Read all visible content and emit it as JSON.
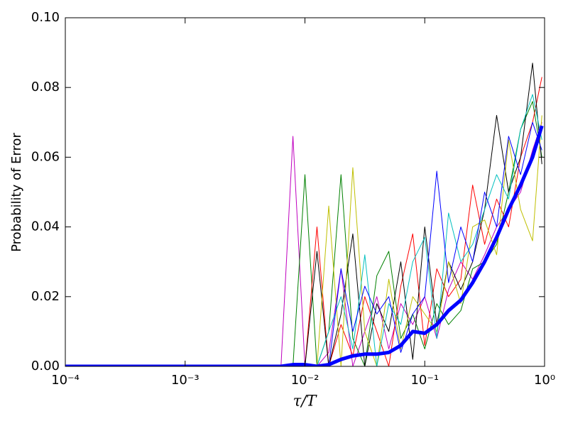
{
  "chart_data": {
    "type": "line",
    "xlabel": "τ/T",
    "ylabel": "Probability of Error",
    "xscale": "log",
    "xlim": [
      0.0001,
      1
    ],
    "ylim": [
      0,
      0.1
    ],
    "xticks": [
      {
        "value": 0.0001,
        "label": "10⁻⁴"
      },
      {
        "value": 0.001,
        "label": "10⁻³"
      },
      {
        "value": 0.01,
        "label": "10⁻²"
      },
      {
        "value": 0.1,
        "label": "10⁻¹"
      },
      {
        "value": 1,
        "label": "10⁰"
      }
    ],
    "yticks": [
      {
        "value": 0,
        "label": "0.00"
      },
      {
        "value": 0.02,
        "label": "0.02"
      },
      {
        "value": 0.04,
        "label": "0.04"
      },
      {
        "value": 0.06,
        "label": "0.06"
      },
      {
        "value": 0.08,
        "label": "0.08"
      },
      {
        "value": 0.1,
        "label": "0.10"
      }
    ],
    "grid": false,
    "x": [
      0.0001,
      0.000126,
      0.000158,
      0.0002,
      0.000251,
      0.000316,
      0.000398,
      0.000501,
      0.000631,
      0.000794,
      0.001,
      0.00126,
      0.00158,
      0.002,
      0.00251,
      0.00316,
      0.00398,
      0.00501,
      0.00631,
      0.00794,
      0.01,
      0.0126,
      0.0158,
      0.02,
      0.0251,
      0.0316,
      0.0398,
      0.0501,
      0.0631,
      0.0794,
      0.1,
      0.126,
      0.158,
      0.2,
      0.251,
      0.316,
      0.398,
      0.501,
      0.631,
      0.794,
      0.95
    ],
    "series": [
      {
        "color": "#bf00bf",
        "linewidth": 1,
        "values": [
          0,
          0,
          0,
          0,
          0,
          0,
          0,
          0,
          0,
          0,
          0,
          0,
          0,
          0,
          0,
          0,
          0,
          0,
          0,
          0.066,
          0,
          0,
          0.004,
          0.028,
          0,
          0.01,
          0.02,
          0.005,
          0.018,
          0.012,
          0.02,
          0.008,
          0.022,
          0.03,
          0.025,
          0.032,
          0.04,
          0.045,
          0.05,
          0.062,
          0.07
        ]
      },
      {
        "color": "#008000",
        "linewidth": 1,
        "values": [
          0,
          0,
          0,
          0,
          0,
          0,
          0,
          0,
          0,
          0,
          0,
          0,
          0,
          0,
          0,
          0,
          0,
          0,
          0,
          0,
          0.055,
          0,
          0.01,
          0.055,
          0.008,
          0,
          0.026,
          0.033,
          0.008,
          0.015,
          0.005,
          0.018,
          0.012,
          0.016,
          0.028,
          0.03,
          0.035,
          0.05,
          0.068,
          0.076,
          0.06
        ]
      },
      {
        "color": "#ff0000",
        "linewidth": 1,
        "values": [
          0,
          0,
          0,
          0,
          0,
          0,
          0,
          0,
          0,
          0,
          0,
          0,
          0,
          0,
          0,
          0,
          0,
          0,
          0,
          0,
          0,
          0.04,
          0,
          0.012,
          0.003,
          0.02,
          0.01,
          0,
          0.023,
          0.038,
          0.006,
          0.028,
          0.02,
          0.025,
          0.052,
          0.035,
          0.048,
          0.04,
          0.06,
          0.07,
          0.083
        ]
      },
      {
        "color": "#000000",
        "linewidth": 1,
        "values": [
          0,
          0,
          0,
          0,
          0,
          0,
          0,
          0,
          0,
          0,
          0,
          0,
          0,
          0,
          0,
          0,
          0,
          0,
          0,
          0,
          0,
          0.033,
          0,
          0.015,
          0.038,
          0,
          0.018,
          0.01,
          0.03,
          0.002,
          0.04,
          0.012,
          0.03,
          0.022,
          0.03,
          0.045,
          0.072,
          0.05,
          0.06,
          0.087,
          0.058
        ]
      },
      {
        "color": "#bfbf00",
        "linewidth": 1,
        "values": [
          0,
          0,
          0,
          0,
          0,
          0,
          0,
          0,
          0,
          0,
          0,
          0,
          0,
          0,
          0,
          0,
          0,
          0,
          0,
          0,
          0,
          0,
          0.046,
          0,
          0.057,
          0.01,
          0,
          0.025,
          0.005,
          0.02,
          0.015,
          0.01,
          0.03,
          0.018,
          0.04,
          0.042,
          0.032,
          0.065,
          0.045,
          0.036,
          0.072
        ]
      },
      {
        "color": "#00bfbf",
        "linewidth": 1,
        "values": [
          0,
          0,
          0,
          0,
          0,
          0,
          0,
          0,
          0,
          0,
          0,
          0,
          0,
          0,
          0,
          0,
          0,
          0,
          0,
          0,
          0,
          0,
          0.01,
          0.02,
          0.005,
          0.032,
          0,
          0.018,
          0.012,
          0.03,
          0.037,
          0.008,
          0.044,
          0.03,
          0.035,
          0.045,
          0.055,
          0.048,
          0.068,
          0.078,
          0.065
        ]
      },
      {
        "color": "#0000ff",
        "linewidth": 1,
        "values": [
          0,
          0,
          0,
          0,
          0,
          0,
          0,
          0,
          0,
          0,
          0,
          0,
          0,
          0,
          0,
          0,
          0,
          0,
          0,
          0,
          0,
          0,
          0,
          0.028,
          0.01,
          0.023,
          0.015,
          0.02,
          0.004,
          0.015,
          0.02,
          0.056,
          0.024,
          0.04,
          0.03,
          0.05,
          0.04,
          0.066,
          0.055,
          0.07,
          0.062
        ]
      },
      {
        "color": "#0000ff",
        "linewidth": 5,
        "values": [
          0,
          0,
          0,
          0,
          0,
          0,
          0,
          0,
          0,
          0,
          0,
          0,
          0,
          0,
          0,
          0,
          0,
          0,
          0,
          0.0005,
          0.0005,
          0,
          0.0005,
          0.002,
          0.003,
          0.0035,
          0.0035,
          0.004,
          0.006,
          0.01,
          0.0095,
          0.012,
          0.016,
          0.019,
          0.024,
          0.03,
          0.037,
          0.045,
          0.052,
          0.06,
          0.069
        ]
      }
    ]
  }
}
